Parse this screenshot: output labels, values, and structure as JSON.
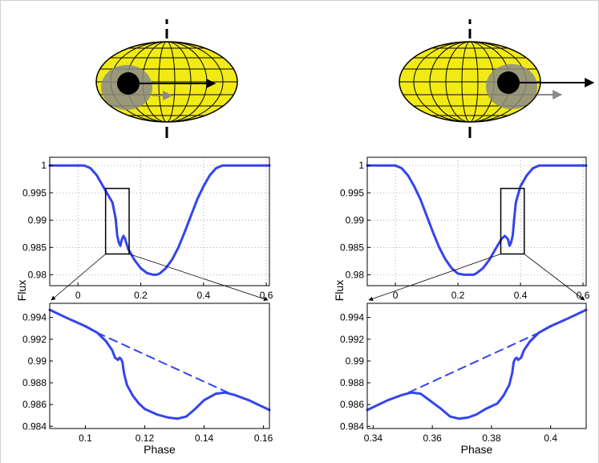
{
  "colors": {
    "curve": "#3344ee",
    "star_fill": "#f2ea16",
    "spot_shade": "#8a8a8a",
    "planet": "#000000",
    "shadow_arrow": "#8a8a8a",
    "grid": "#999999"
  },
  "illustration": {
    "left": {
      "planet_position": "left",
      "description_icon": "star-with-transiting-planet"
    },
    "right": {
      "planet_position": "right",
      "description_icon": "star-with-transiting-planet"
    }
  },
  "chart_data": [
    {
      "id": "top-left",
      "type": "line",
      "xlabel": "",
      "ylabel": "Flux",
      "xlim": [
        -0.09,
        0.61
      ],
      "ylim": [
        0.978,
        1.0015
      ],
      "xticks": [
        "0",
        "0.2",
        "0.4",
        "0.6"
      ],
      "xtick_values": [
        0,
        0.2,
        0.4,
        0.6
      ],
      "yticks": [
        "1",
        "0.995",
        "0.99",
        "0.985",
        "0.98"
      ],
      "ytick_values": [
        1,
        0.995,
        0.99,
        0.985,
        0.98
      ],
      "grid": true,
      "series": [
        {
          "x": [
            -0.09,
            0.0,
            0.02,
            0.04,
            0.06,
            0.08,
            0.1,
            0.11,
            0.12,
            0.125,
            0.13,
            0.135,
            0.14,
            0.145,
            0.15,
            0.16,
            0.18,
            0.2,
            0.22,
            0.24,
            0.25,
            0.26,
            0.28,
            0.3,
            0.32,
            0.34,
            0.36,
            0.38,
            0.4,
            0.42,
            0.44,
            0.46,
            0.48,
            0.5,
            0.52,
            0.61
          ],
          "y": [
            1.0,
            1.0,
            1.0,
            0.9995,
            0.9982,
            0.9962,
            0.9942,
            0.9932,
            0.9903,
            0.9872,
            0.9859,
            0.9853,
            0.9865,
            0.9871,
            0.9866,
            0.9847,
            0.9827,
            0.9812,
            0.9803,
            0.98,
            0.98,
            0.9802,
            0.9812,
            0.9828,
            0.985,
            0.9878,
            0.9908,
            0.9938,
            0.9962,
            0.9982,
            0.9995,
            1.0,
            1.0,
            1.0,
            1.0,
            1.0
          ]
        }
      ],
      "inset_box": {
        "x": [
          0.088,
          0.163
        ],
        "y": [
          0.9838,
          0.9958
        ]
      }
    },
    {
      "id": "top-right",
      "type": "line",
      "xlabel": "",
      "ylabel": "Flux",
      "xlim": [
        -0.09,
        0.61
      ],
      "ylim": [
        0.978,
        1.0015
      ],
      "xticks": [
        "0",
        "0.2",
        "0.4",
        "0.6"
      ],
      "xtick_values": [
        0,
        0.2,
        0.4,
        0.6
      ],
      "yticks": [
        "1",
        "0.995",
        "0.99",
        "0.985",
        "0.98"
      ],
      "ytick_values": [
        1,
        0.995,
        0.99,
        0.985,
        0.98
      ],
      "grid": true,
      "series": [
        {
          "x": [
            -0.09,
            -0.01,
            0.0,
            0.02,
            0.04,
            0.06,
            0.08,
            0.1,
            0.12,
            0.14,
            0.16,
            0.18,
            0.2,
            0.22,
            0.24,
            0.25,
            0.26,
            0.28,
            0.3,
            0.32,
            0.34,
            0.35,
            0.36,
            0.365,
            0.37,
            0.375,
            0.38,
            0.385,
            0.39,
            0.4,
            0.42,
            0.44,
            0.46,
            0.48,
            0.5,
            0.61
          ],
          "y": [
            1.0,
            1.0,
            1.0,
            0.9995,
            0.9982,
            0.9962,
            0.9938,
            0.9908,
            0.9878,
            0.985,
            0.9828,
            0.9812,
            0.9802,
            0.98,
            0.98,
            0.98,
            0.9803,
            0.9812,
            0.9827,
            0.9847,
            0.9866,
            0.9871,
            0.9865,
            0.9853,
            0.9859,
            0.9872,
            0.9903,
            0.9932,
            0.9942,
            0.9962,
            0.9982,
            0.9995,
            1.0,
            1.0,
            1.0,
            1.0
          ]
        }
      ],
      "inset_box": {
        "x": [
          0.337,
          0.412
        ],
        "y": [
          0.9838,
          0.9958
        ]
      }
    },
    {
      "id": "bottom-left",
      "type": "line",
      "xlabel": "Phase",
      "ylabel": "",
      "xlim": [
        0.088,
        0.162
      ],
      "ylim": [
        0.9838,
        0.9953
      ],
      "xticks": [
        "0.1",
        "0.12",
        "0.14",
        "0.16"
      ],
      "xtick_values": [
        0.1,
        0.12,
        0.14,
        0.16
      ],
      "yticks": [
        "0.994",
        "0.992",
        "0.99",
        "0.988",
        "0.986",
        "0.984"
      ],
      "ytick_values": [
        0.994,
        0.992,
        0.99,
        0.988,
        0.986,
        0.984
      ],
      "grid": false,
      "series": [
        {
          "style": "solid",
          "x": [
            0.088,
            0.095,
            0.1,
            0.104,
            0.107,
            0.109,
            0.11,
            0.111,
            0.1115,
            0.112,
            0.1125,
            0.113,
            0.114,
            0.116,
            0.118,
            0.12,
            0.124,
            0.128,
            0.131,
            0.134,
            0.137,
            0.14,
            0.144,
            0.147,
            0.15,
            0.155,
            0.162
          ],
          "y": [
            0.9947,
            0.9938,
            0.9932,
            0.9926,
            0.9918,
            0.991,
            0.9903,
            0.9901,
            0.9903,
            0.9902,
            0.9899,
            0.9889,
            0.9878,
            0.9868,
            0.9861,
            0.9856,
            0.9851,
            0.9848,
            0.9847,
            0.9849,
            0.9856,
            0.9864,
            0.987,
            0.9871,
            0.9869,
            0.9864,
            0.9855
          ]
        },
        {
          "style": "dashed",
          "x": [
            0.104,
            0.148
          ],
          "y": [
            0.9926,
            0.9871
          ]
        }
      ]
    },
    {
      "id": "bottom-right",
      "type": "line",
      "xlabel": "Phase",
      "ylabel": "",
      "xlim": [
        0.338,
        0.412
      ],
      "ylim": [
        0.9838,
        0.9953
      ],
      "xticks": [
        "0.34",
        "0.36",
        "0.38",
        "0.4"
      ],
      "xtick_values": [
        0.34,
        0.36,
        0.38,
        0.4
      ],
      "yticks": [
        "0.994",
        "0.992",
        "0.99",
        "0.988",
        "0.986",
        "0.984"
      ],
      "ytick_values": [
        0.994,
        0.992,
        0.99,
        0.988,
        0.986,
        0.984
      ],
      "grid": false,
      "series": [
        {
          "style": "solid",
          "x": [
            0.338,
            0.345,
            0.35,
            0.353,
            0.356,
            0.359,
            0.363,
            0.366,
            0.369,
            0.372,
            0.375,
            0.378,
            0.382,
            0.384,
            0.386,
            0.387,
            0.3875,
            0.388,
            0.3885,
            0.389,
            0.39,
            0.391,
            0.393,
            0.396,
            0.4,
            0.405,
            0.412
          ],
          "y": [
            0.9855,
            0.9864,
            0.9869,
            0.9871,
            0.987,
            0.9864,
            0.9856,
            0.9849,
            0.9847,
            0.9848,
            0.9851,
            0.9856,
            0.9861,
            0.9868,
            0.9878,
            0.9889,
            0.9899,
            0.9902,
            0.9903,
            0.9901,
            0.9903,
            0.991,
            0.9918,
            0.9926,
            0.9932,
            0.9938,
            0.9947
          ]
        },
        {
          "style": "dashed",
          "x": [
            0.352,
            0.396
          ],
          "y": [
            0.9871,
            0.9926
          ]
        }
      ]
    }
  ]
}
